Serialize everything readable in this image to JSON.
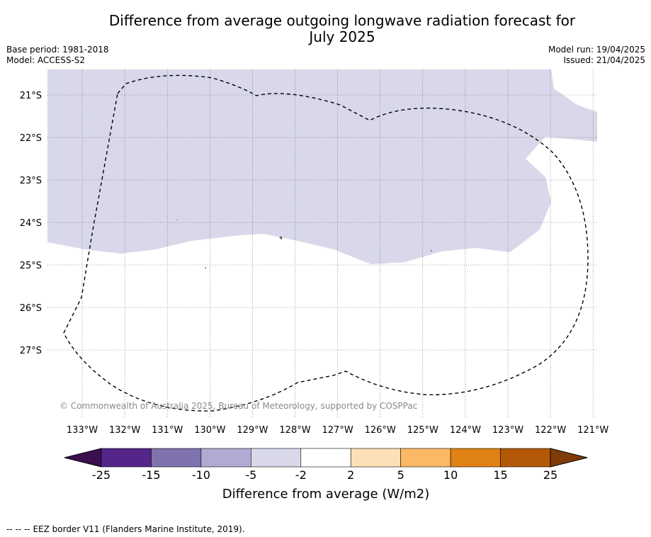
{
  "header": {
    "title_line1": "Difference from average outgoing longwave radiation forecast for",
    "title_line2": "July 2025",
    "base_period": "Base period: 1981-2018",
    "model": "Model: ACCESS-S2",
    "model_run": "Model run: 19/04/2025",
    "issued": "Issued: 21/04/2025"
  },
  "map": {
    "lon_labels": [
      "133°W",
      "132°W",
      "131°W",
      "130°W",
      "129°W",
      "128°W",
      "127°W",
      "126°W",
      "125°W",
      "124°W",
      "123°W",
      "122°W",
      "121°W"
    ],
    "lat_labels": [
      "21°S",
      "22°S",
      "23°S",
      "24°S",
      "25°S",
      "26°S",
      "27°S"
    ],
    "anomaly_fill_color": "#d8d8ea",
    "anomaly_class": "-5 to -2",
    "copyright": "© Commonwealth of Australia 2025, Bureau of Meteorology, supported by COSPPac"
  },
  "colorbar": {
    "ticks": [
      "-25",
      "-15",
      "-10",
      "-5",
      "-2",
      "2",
      "5",
      "10",
      "15",
      "25"
    ],
    "colors": [
      "#3b0f4f",
      "#55268a",
      "#7f72ad",
      "#b1aad2",
      "#d8d8ea",
      "#ffffff",
      "#fee0b6",
      "#fdb863",
      "#e08214",
      "#b35806",
      "#7f3b08"
    ],
    "title": "Difference from average (W/m2)"
  },
  "footer": {
    "legend_symbol": "-- -- --",
    "eez_note": "EEZ border V11 (Flanders Marine Institute, 2019)."
  }
}
